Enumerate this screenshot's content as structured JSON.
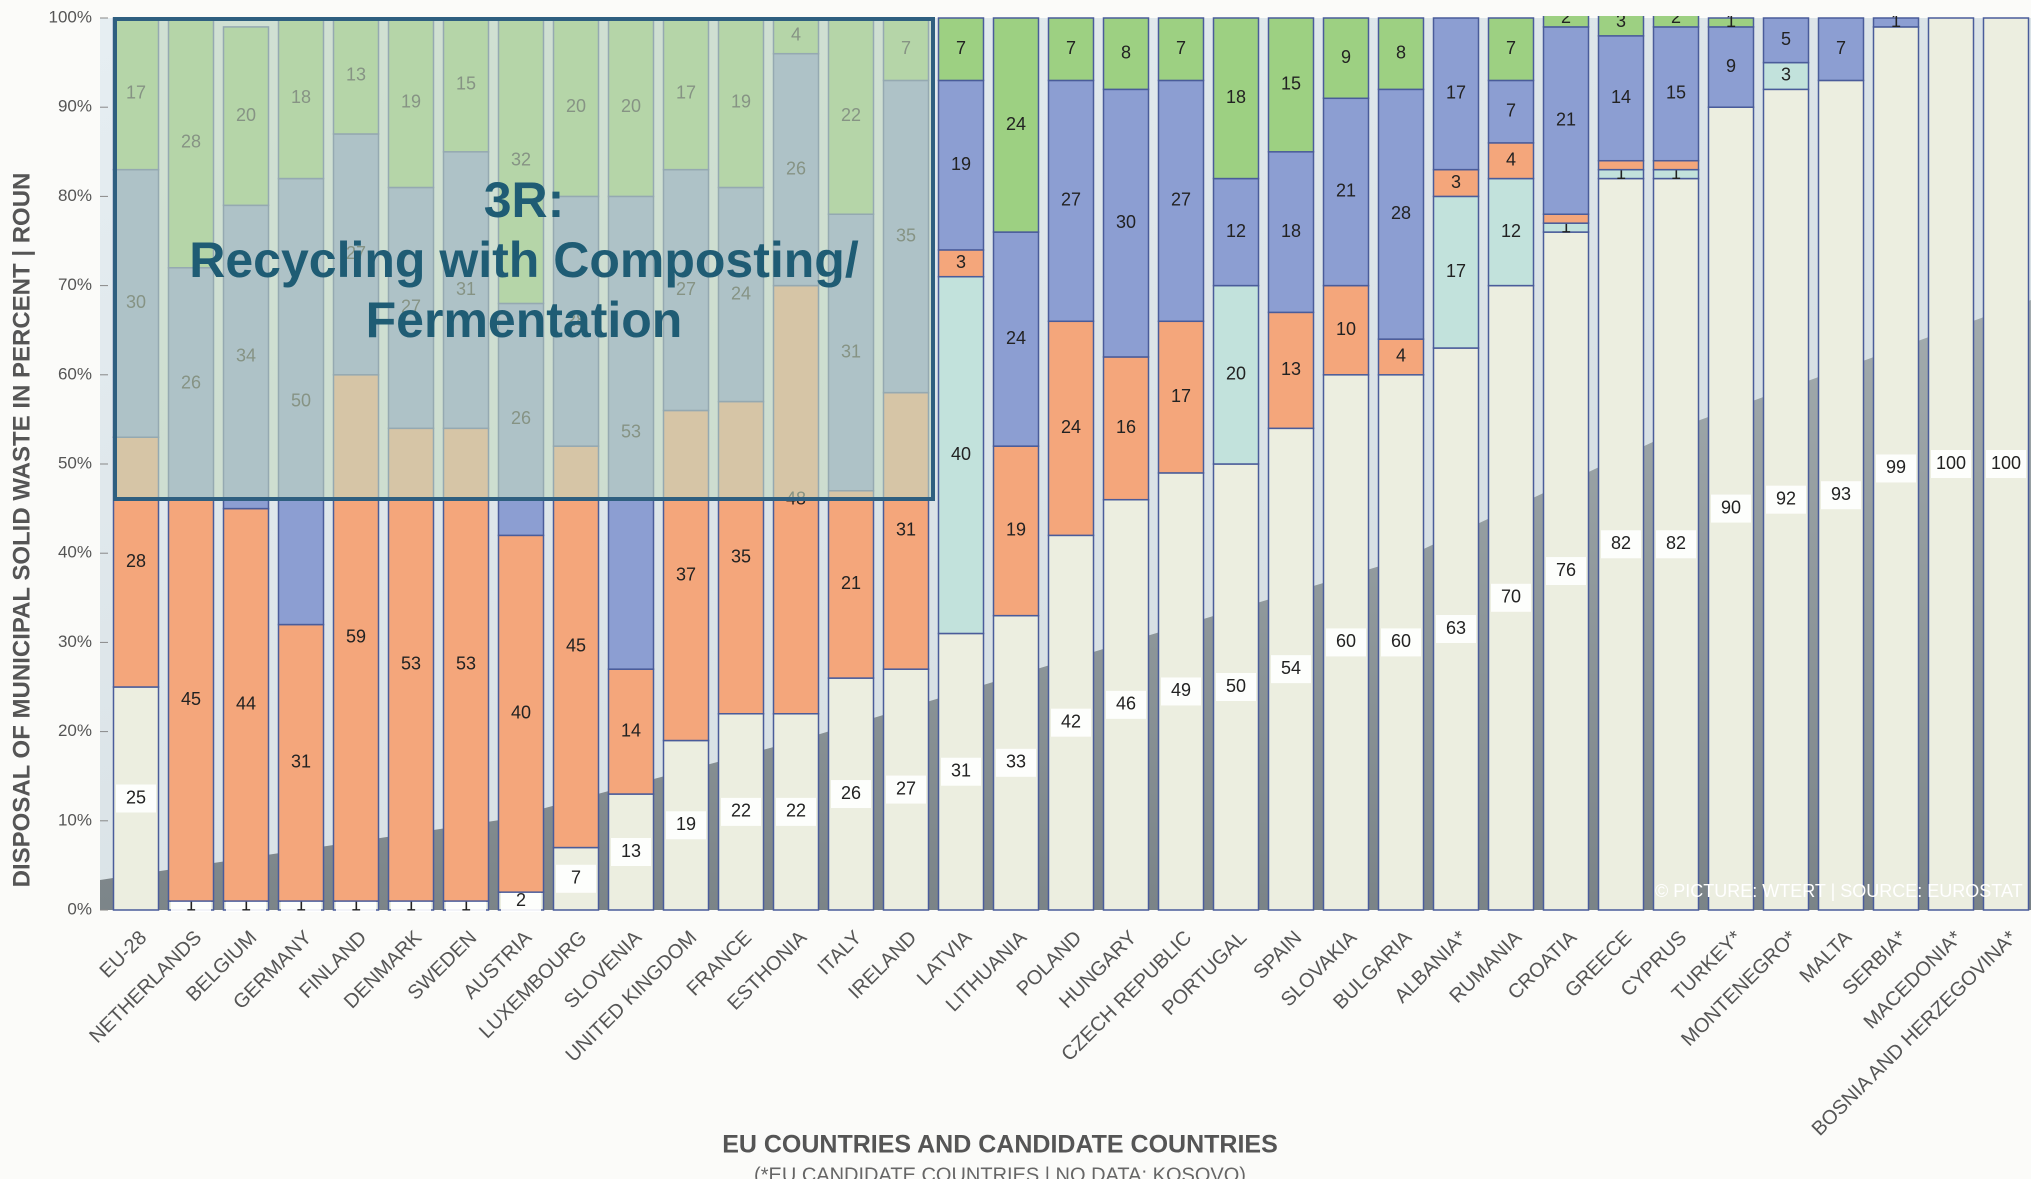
{
  "chart_data": {
    "type": "stacked-bar",
    "overlay_title": [
      "3R:",
      "Recycling with Composting/",
      "Fermentation"
    ],
    "y_label": "DISPOSAL OF MUNICIPAL SOLID WASTE  IN PERCENT | ROUN",
    "x_label": "EU COUNTRIES AND CANDIDATE COUNTRIES",
    "x_note": "(*EU CANDIDATE COUNTRIES | NO DATA: KOSOVO)",
    "credit": "© PICTURE: WTERT |  SOURCE: EUROSTAT",
    "categories": [
      "EU-28",
      "NETHERLANDS",
      "BELGIUM",
      "GERMANY",
      "FINLAND",
      "DENMARK",
      "SWEDEN",
      "AUSTRIA",
      "LUXEMBOURG",
      "SLOVENIA",
      "UNITED KINGDOM",
      "FRANCE",
      "ESTHONIA",
      "ITALY",
      "IRELAND",
      "LATVIA",
      "LITHUANIA",
      "POLAND",
      "HUNGARY",
      "CZECH REPUBLIC",
      "PORTUGAL",
      "SPAIN",
      "SLOVAKIA",
      "BULGARIA",
      "ALBANIA*",
      "RUMANIA",
      "CROATIA",
      "GREECE",
      "CYPRUS",
      "TURKEY*",
      "MONTENEGRO*",
      "MALTA",
      "SERBIA*",
      "MACEDONIA*",
      "BOSNIA AND HERZEGOVINA*"
    ],
    "series": [
      {
        "color": "#eceee0",
        "values": [
          25,
          1,
          1,
          1,
          1,
          1,
          1,
          2,
          7,
          13,
          19,
          22,
          22,
          26,
          27,
          31,
          33,
          42,
          46,
          49,
          50,
          54,
          60,
          60,
          63,
          70,
          76,
          82,
          82,
          90,
          92,
          93,
          99,
          100,
          100
        ]
      },
      {
        "color": "#c2e2dc",
        "values": [
          0,
          0,
          0,
          0,
          0,
          0,
          0,
          0,
          0,
          0,
          0,
          0,
          0,
          0,
          0,
          40,
          0,
          0,
          0,
          0,
          20,
          0,
          0,
          0,
          17,
          12,
          1,
          1,
          1,
          0,
          3,
          0,
          0,
          0,
          0
        ]
      },
      {
        "color": "#f4a67b",
        "values": [
          28,
          45,
          44,
          31,
          59,
          53,
          53,
          40,
          45,
          14,
          37,
          35,
          48,
          21,
          31,
          3,
          19,
          24,
          16,
          17,
          0,
          13,
          10,
          4,
          3,
          4,
          1,
          1,
          1,
          0,
          0,
          0,
          0,
          0,
          0
        ],
        "value_labels": [
          "28",
          "45",
          "44",
          "31",
          "59",
          "53",
          "53",
          "40",
          "45",
          "14",
          "37",
          "35",
          "48",
          "21",
          "31",
          "3",
          "19",
          "24",
          "16",
          "17",
          null,
          "13",
          "10",
          "4",
          "3",
          "4",
          null,
          null,
          null,
          null,
          null,
          null,
          null,
          null,
          null
        ]
      },
      {
        "color": "#8c9ed2",
        "values": [
          30,
          26,
          34,
          50,
          27,
          27,
          31,
          26,
          28,
          53,
          27,
          24,
          26,
          31,
          35,
          19,
          24,
          27,
          30,
          27,
          12,
          18,
          21,
          28,
          17,
          7,
          21,
          14,
          15,
          9,
          5,
          7,
          1,
          0,
          0
        ]
      },
      {
        "color": "#9dd082",
        "values": [
          17,
          28,
          20,
          18,
          13,
          19,
          15,
          32,
          20,
          20,
          17,
          19,
          4,
          22,
          7,
          7,
          24,
          7,
          8,
          7,
          18,
          15,
          9,
          8,
          0,
          7,
          2,
          3,
          2,
          1,
          0,
          0,
          0,
          0,
          0
        ]
      }
    ],
    "ylim": [
      0,
      100
    ],
    "yticks": [
      {
        "value": 0,
        "label": "0%"
      },
      {
        "value": 10,
        "label": "10%"
      },
      {
        "value": 20,
        "label": "20%"
      },
      {
        "value": 30,
        "label": "30%"
      },
      {
        "value": 40,
        "label": "40%"
      },
      {
        "value": 50,
        "label": "50%"
      },
      {
        "value": 60,
        "label": "60%"
      },
      {
        "value": 70,
        "label": "70%"
      },
      {
        "value": 80,
        "label": "80%"
      },
      {
        "value": 90,
        "label": "90%"
      },
      {
        "value": 100,
        "label": "100%"
      }
    ]
  }
}
